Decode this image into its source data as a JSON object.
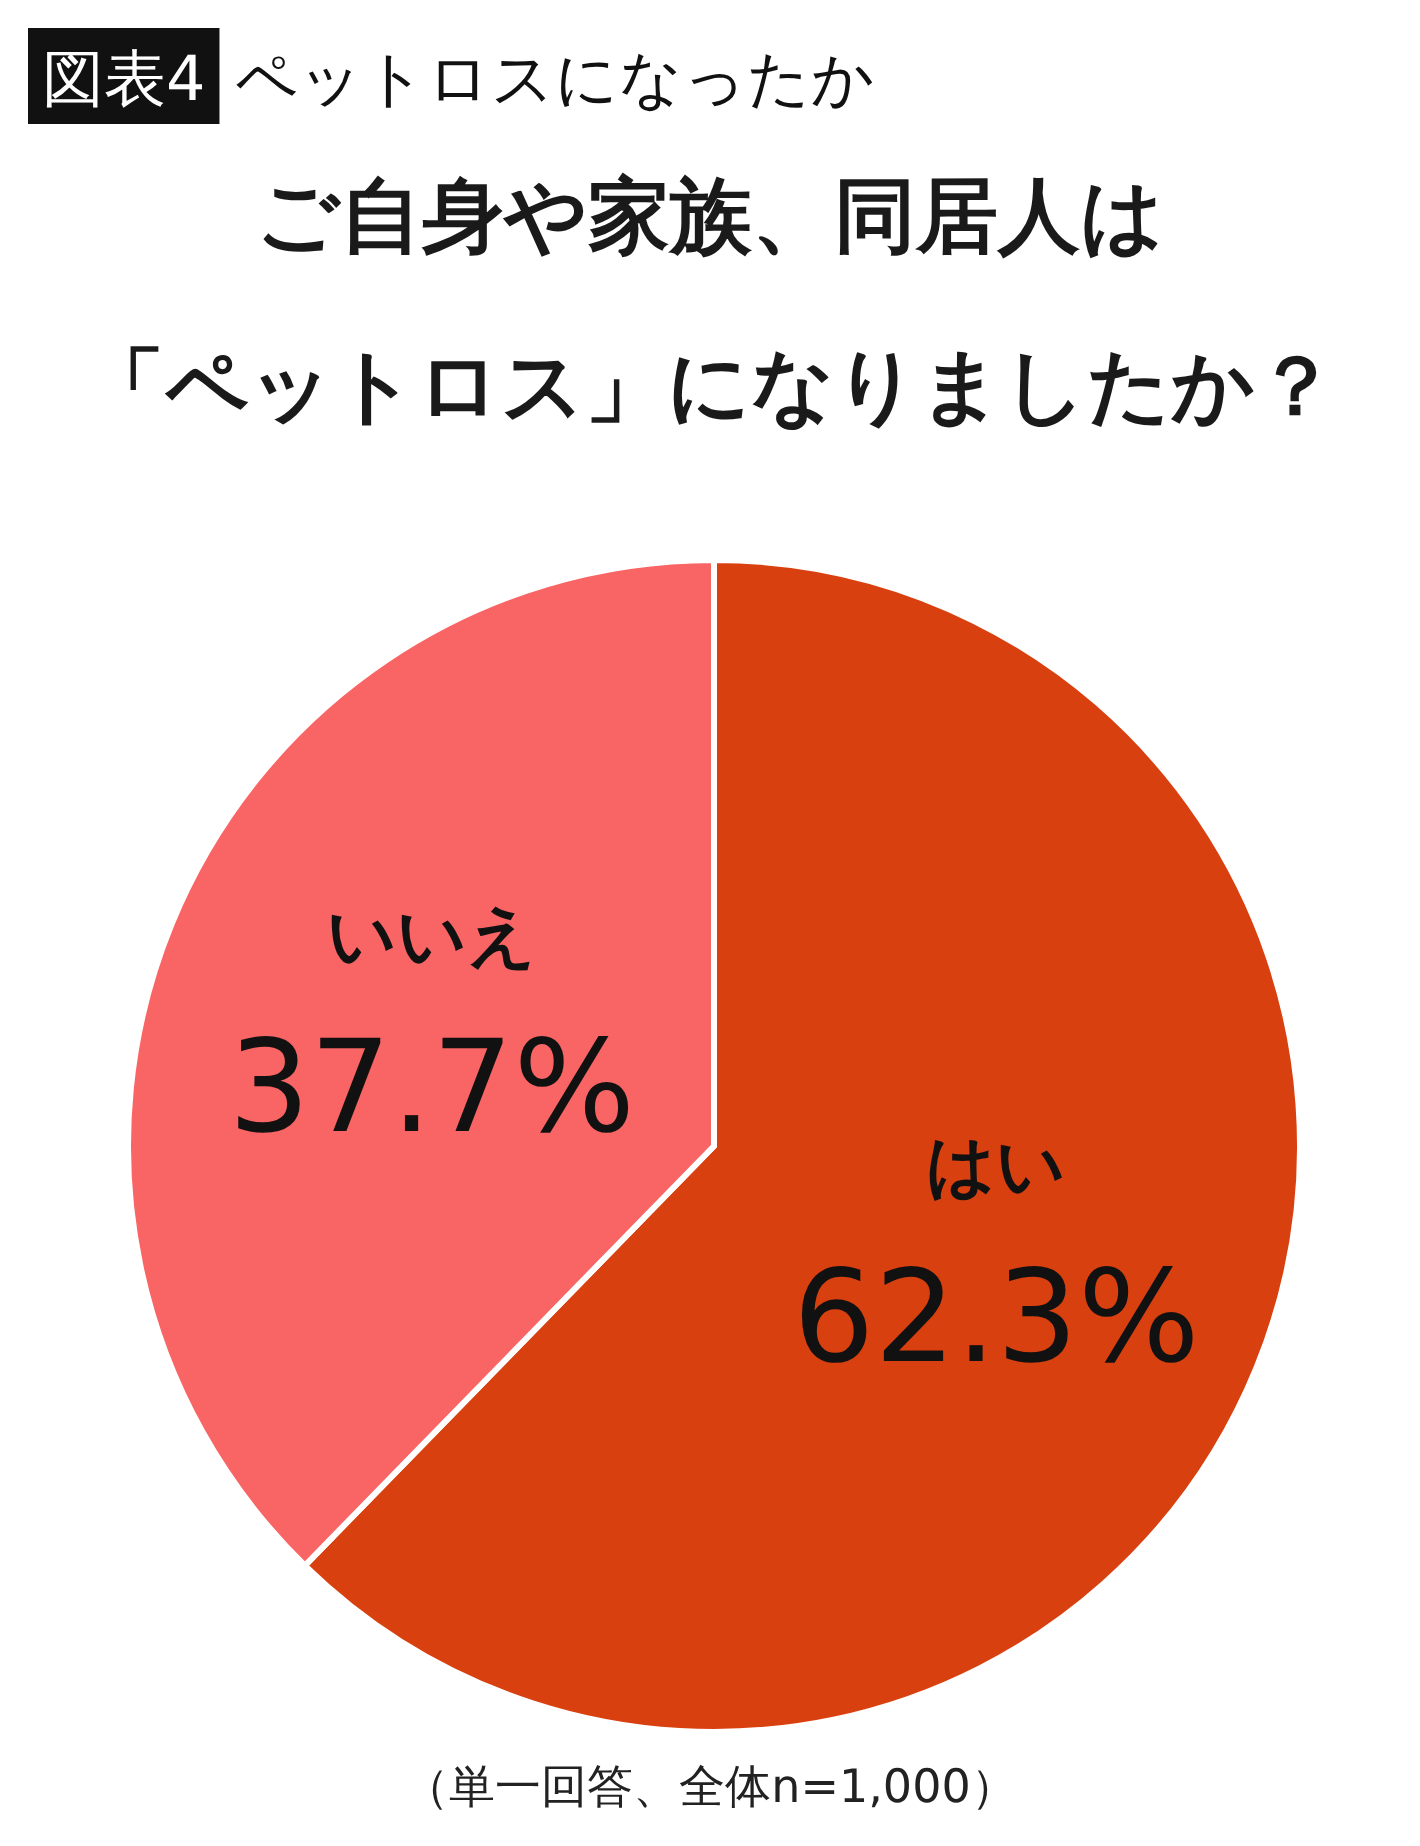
{
  "chart_data": {
    "type": "pie",
    "title": "ペットロスになったか",
    "subtitle": "ご自身や家族、同居人は「ペットロス」になりましたか？",
    "annotations": [
      "図表4",
      "（単一回答、全体n=1,000）"
    ],
    "categories": [
      "はい",
      "いいえ"
    ],
    "values": [
      62.3,
      37.7
    ],
    "colors": [
      "#d9400f",
      "#f96464"
    ],
    "value_labels": [
      "62.3%",
      "37.7%"
    ]
  }
}
